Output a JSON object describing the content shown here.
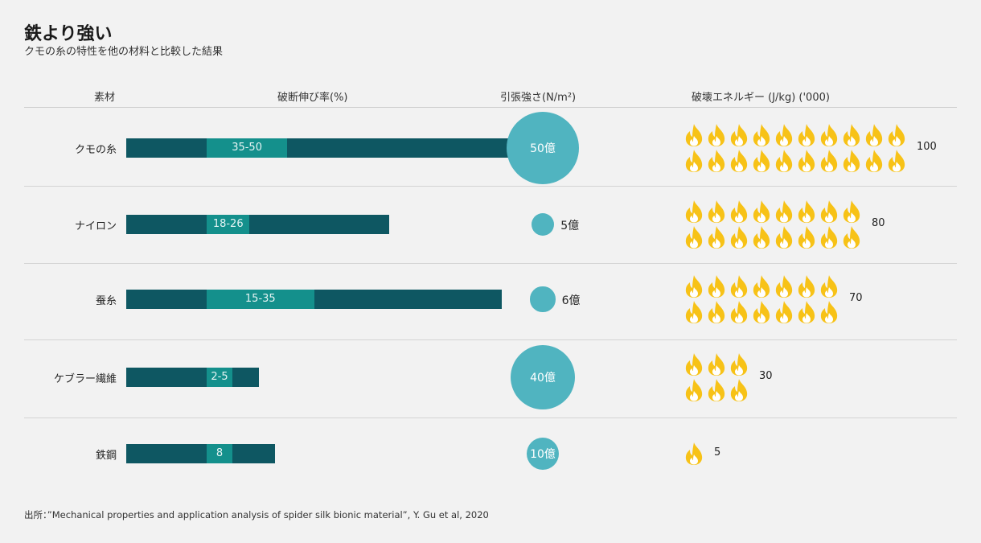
{
  "title": "鉄より強い",
  "subtitle": "クモの糸の特性を他の材料と比較した結果",
  "headers": {
    "material": "素材",
    "elongation": "破断伸び率(%)",
    "tensile": "引張強さ(N/m²)",
    "energy": "破壊エネルギー (J/kg) ('000)"
  },
  "source": "出所：”Mechanical properties and application analysis of spider silk bionic material”, Y. Gu et al, 2020",
  "colors": {
    "bar_dark": "#0e5762",
    "bar_range": "#14908c",
    "circle": "#50b4c0",
    "flame_outer": "#f7c217",
    "flame_inner": "#ffffff"
  },
  "chart_data": {
    "type": "table",
    "rows": [
      {
        "material": "クモの糸",
        "elong_min": 35,
        "elong_max": 50,
        "elong_label": "35-50",
        "tensile": 5000000000,
        "tensile_label": "50億",
        "tensile_label_inside": true,
        "energy": 100,
        "energy_label": "100"
      },
      {
        "material": "ナイロン",
        "elong_min": 18,
        "elong_max": 26,
        "elong_label": "18-26",
        "tensile": 500000000,
        "tensile_label": "5億",
        "tensile_label_inside": false,
        "energy": 80,
        "energy_label": "80"
      },
      {
        "material": "蚕糸",
        "elong_min": 15,
        "elong_max": 35,
        "elong_label": "15-35",
        "tensile": 600000000,
        "tensile_label": "6億",
        "tensile_label_inside": false,
        "energy": 70,
        "energy_label": "70"
      },
      {
        "material": "ケブラー繊維",
        "elong_min": 2,
        "elong_max": 5,
        "elong_label": "2-5",
        "tensile": 4000000000,
        "tensile_label": "40億",
        "tensile_label_inside": true,
        "energy": 30,
        "energy_label": "30"
      },
      {
        "material": "鉄鋼",
        "elong_min": 8,
        "elong_max": 8,
        "elong_label": "8",
        "tensile": 1000000000,
        "tensile_label": "10億",
        "tensile_label_inside": true,
        "energy": 5,
        "energy_label": "5"
      }
    ],
    "energy_units_per_flame": 5
  }
}
